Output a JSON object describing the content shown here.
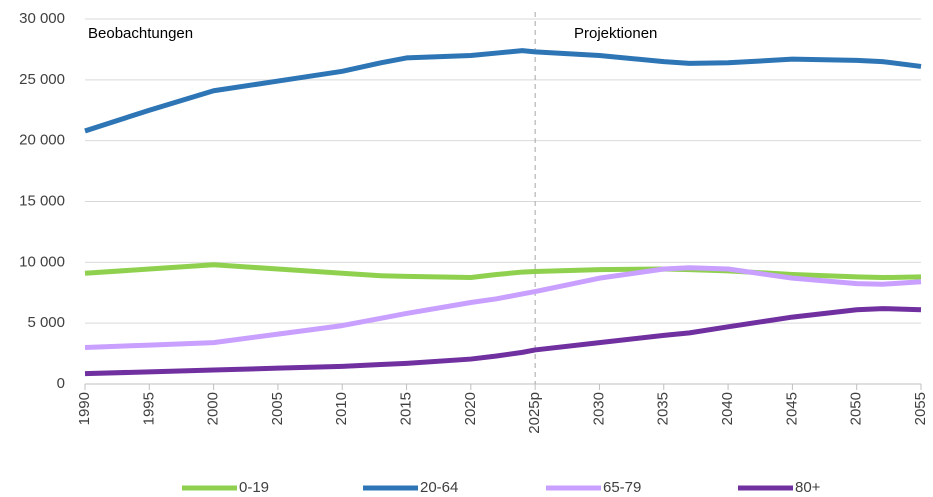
{
  "chart_data": {
    "type": "line",
    "annotations": [
      "Beobachtungen",
      "Projektionen"
    ],
    "vline": 2025,
    "x": [
      1990,
      1995,
      2000,
      2005,
      2010,
      2013,
      2015,
      2020,
      2022,
      2024,
      2025,
      2030,
      2035,
      2037,
      2040,
      2045,
      2050,
      2052,
      2055
    ],
    "series": [
      {
        "name": "0-19",
        "color": "#8fd14f",
        "values": [
          9100,
          9450,
          9800,
          9450,
          9100,
          8900,
          8850,
          8750,
          9000,
          9200,
          9250,
          9400,
          9450,
          9400,
          9300,
          9000,
          8800,
          8750,
          8800
        ]
      },
      {
        "name": "20-64",
        "color": "#2e75b6",
        "values": [
          20800,
          22500,
          24100,
          24900,
          25700,
          26400,
          26800,
          27000,
          27200,
          27400,
          27300,
          27000,
          26500,
          26350,
          26400,
          26700,
          26600,
          26500,
          26100
        ]
      },
      {
        "name": "65-79",
        "color": "#c9a0ff",
        "values": [
          3000,
          3200,
          3400,
          4100,
          4800,
          5400,
          5800,
          6700,
          7000,
          7400,
          7600,
          8700,
          9450,
          9550,
          9450,
          8700,
          8250,
          8200,
          8400
        ]
      },
      {
        "name": "80+",
        "color": "#7030a0",
        "values": [
          850,
          1000,
          1150,
          1300,
          1450,
          1600,
          1700,
          2050,
          2300,
          2600,
          2800,
          3400,
          4000,
          4200,
          4700,
          5500,
          6100,
          6200,
          6100
        ]
      }
    ],
    "xlim": [
      1990,
      2055
    ],
    "xticks": [
      1990,
      1995,
      2000,
      2005,
      2010,
      2015,
      2020,
      {
        "value": 2025,
        "label": "2025p"
      },
      2030,
      2035,
      2040,
      2045,
      2050,
      2055
    ],
    "ylim": [
      0,
      30000
    ],
    "yticks": [
      0,
      {
        "value": 5000,
        "label": "5 000"
      },
      {
        "value": 10000,
        "label": "10 000"
      },
      {
        "value": 15000,
        "label": "15 000"
      },
      {
        "value": 20000,
        "label": "20 000"
      },
      {
        "value": 25000,
        "label": "25 000"
      },
      {
        "value": 30000,
        "label": "30 000"
      }
    ],
    "grid": true
  }
}
